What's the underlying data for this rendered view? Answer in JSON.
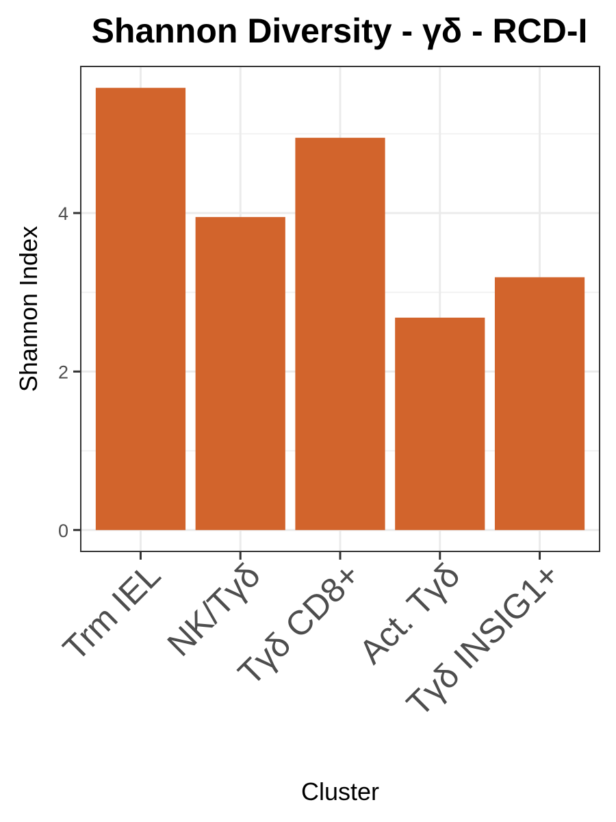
{
  "chart_data": {
    "type": "bar",
    "title": "Shannon Diversity - γδ - RCD-I",
    "xlabel": "Cluster",
    "ylabel": "Shannon Index",
    "categories": [
      "Trm IEL",
      "NK/Tγδ",
      "Tγδ CD8+",
      "Act. Tγδ",
      "Tγδ INSIG1+"
    ],
    "values": [
      5.58,
      3.95,
      4.95,
      2.68,
      3.19
    ],
    "ylim": [
      -0.27,
      5.85
    ],
    "yticks": [
      0,
      2,
      4
    ],
    "ytick_labels": [
      "0",
      "2",
      "4"
    ],
    "bar_color": "#d2642c",
    "grid": true,
    "legend": "none"
  }
}
